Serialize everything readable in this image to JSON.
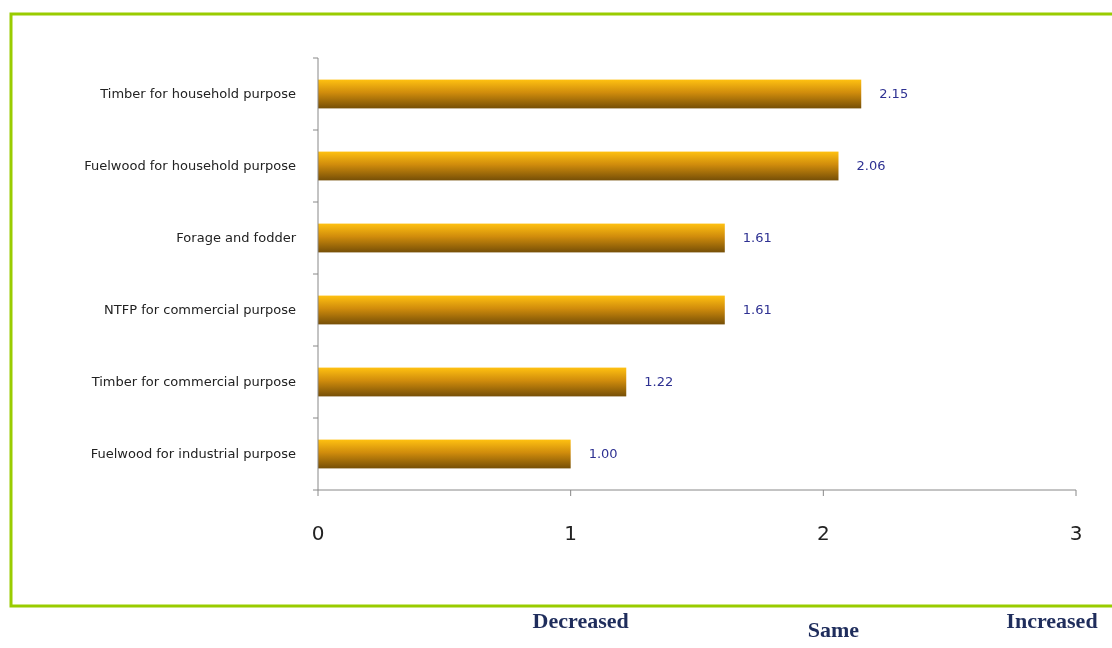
{
  "chart_data": {
    "type": "bar",
    "orientation": "horizontal",
    "categories": [
      "Timber for household purpose",
      "Fuelwood for household purpose",
      "Forage and fodder",
      "NTFP for commercial purpose",
      "Timber for commercial purpose",
      "Fuelwood for industrial purpose"
    ],
    "values": [
      2.15,
      2.06,
      1.61,
      1.61,
      1.22,
      1.0
    ],
    "value_labels": [
      "2.15",
      "2.06",
      "1.61",
      "1.61",
      "1.22",
      "1.00"
    ],
    "color": "#d08c0c",
    "xlim": [
      0,
      3
    ],
    "xticks": [
      0,
      1,
      2,
      3
    ],
    "grid": false,
    "annotations": [
      "Decreased",
      "Same",
      "Increased"
    ]
  }
}
